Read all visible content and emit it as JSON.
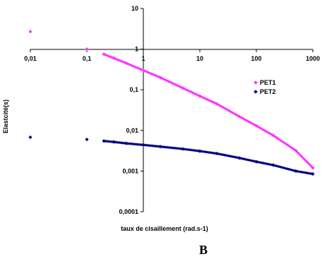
{
  "chart_data": {
    "type": "scatter",
    "title": "",
    "xlabel": "taux de cisaillement (rad.s-1)",
    "ylabel": "Elastcité(s)",
    "caption": "B",
    "x_scale": "log",
    "y_scale": "log",
    "xlim": [
      0.01,
      1000
    ],
    "ylim": [
      0.0001,
      10
    ],
    "x_ticks": [
      "0,01",
      "0,1",
      "1",
      "10",
      "100",
      "1000"
    ],
    "y_ticks": [
      "10",
      "1",
      "0,1",
      "0,01",
      "0,001",
      "0,0001"
    ],
    "grid": false,
    "legend_position": "right",
    "series": [
      {
        "name": "PET1",
        "color": "#ff33ff",
        "marker": "diamond",
        "x": [
          0.01,
          0.1,
          0.2,
          0.3,
          0.5,
          1,
          2,
          5,
          10,
          20,
          50,
          100,
          200,
          500,
          1000
        ],
        "y": [
          2.7,
          1.0,
          0.75,
          0.6,
          0.45,
          0.3,
          0.2,
          0.11,
          0.07,
          0.045,
          0.022,
          0.013,
          0.0075,
          0.0032,
          0.0012
        ]
      },
      {
        "name": "PET2",
        "color": "#000080",
        "marker": "diamond",
        "x": [
          0.01,
          0.1,
          0.2,
          0.3,
          0.5,
          1,
          2,
          5,
          10,
          20,
          50,
          100,
          200,
          500,
          1000
        ],
        "y": [
          0.0068,
          0.006,
          0.0055,
          0.0052,
          0.0048,
          0.0044,
          0.004,
          0.0035,
          0.0031,
          0.0027,
          0.0021,
          0.0017,
          0.0014,
          0.001,
          0.00085
        ]
      }
    ]
  }
}
